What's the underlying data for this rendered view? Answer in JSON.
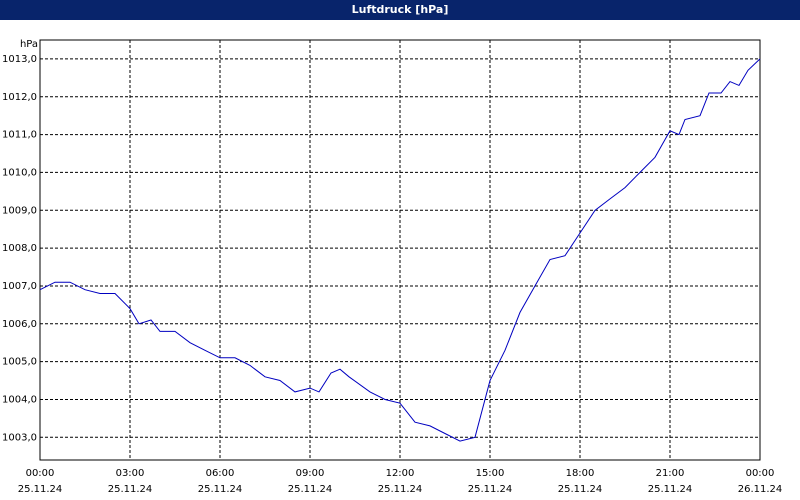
{
  "chart_data": {
    "type": "line",
    "title": "Luftdruck [hPa]",
    "y_unit": "hPa",
    "x": [
      0,
      0.5,
      1,
      1.5,
      2,
      2.5,
      3,
      3.3,
      3.7,
      4,
      4.5,
      5,
      5.5,
      6,
      6.5,
      7,
      7.5,
      8,
      8.5,
      9,
      9.3,
      9.7,
      10,
      10.3,
      11,
      11.5,
      12,
      12.5,
      13,
      13.5,
      14,
      14.5,
      15,
      15.5,
      16,
      16.5,
      17,
      17.5,
      18,
      18.5,
      19,
      19.5,
      20,
      20.5,
      21,
      21.3,
      21.5,
      22,
      22.3,
      22.7,
      23,
      23.3,
      23.6,
      24
    ],
    "series": [
      {
        "name": "Luftdruck",
        "color": "#0000c0",
        "values": [
          1006.9,
          1007.1,
          1007.1,
          1006.9,
          1006.8,
          1006.8,
          1006.4,
          1006.0,
          1006.1,
          1005.8,
          1005.8,
          1005.5,
          1005.3,
          1005.1,
          1005.1,
          1004.9,
          1004.6,
          1004.5,
          1004.2,
          1004.3,
          1004.2,
          1004.7,
          1004.8,
          1004.6,
          1004.2,
          1004.0,
          1003.9,
          1003.4,
          1003.3,
          1003.1,
          1002.9,
          1003.0,
          1004.5,
          1005.3,
          1006.3,
          1007.0,
          1007.7,
          1007.8,
          1008.4,
          1009.0,
          1009.3,
          1009.6,
          1010.0,
          1010.4,
          1011.1,
          1011.0,
          1011.4,
          1011.5,
          1012.1,
          1012.1,
          1012.4,
          1012.3,
          1012.7,
          1013.0
        ]
      }
    ],
    "xlim": [
      0,
      24
    ],
    "xticks": [
      {
        "value": 0,
        "label": "00:00"
      },
      {
        "value": 3,
        "label": "03:00"
      },
      {
        "value": 6,
        "label": "06:00"
      },
      {
        "value": 9,
        "label": "09:00"
      },
      {
        "value": 12,
        "label": "12:00"
      },
      {
        "value": 15,
        "label": "15:00"
      },
      {
        "value": 18,
        "label": "18:00"
      },
      {
        "value": 21,
        "label": "21:00"
      },
      {
        "value": 24,
        "label": "00:00"
      }
    ],
    "xtick_dates": [
      "25.11.24",
      "25.11.24",
      "25.11.24",
      "25.11.24",
      "25.11.24",
      "25.11.24",
      "25.11.24",
      "25.11.24",
      "26.11.24"
    ],
    "ylim": [
      1002.4,
      1013.5
    ],
    "yticks": [
      {
        "value": 1003,
        "label": "1003,0"
      },
      {
        "value": 1004,
        "label": "1004,0"
      },
      {
        "value": 1005,
        "label": "1005,0"
      },
      {
        "value": 1006,
        "label": "1006,0"
      },
      {
        "value": 1007,
        "label": "1007,0"
      },
      {
        "value": 1008,
        "label": "1008,0"
      },
      {
        "value": 1009,
        "label": "1009,0"
      },
      {
        "value": 1010,
        "label": "1010,0"
      },
      {
        "value": 1011,
        "label": "1011,0"
      },
      {
        "value": 1012,
        "label": "1012,0"
      },
      {
        "value": 1013,
        "label": "1013,0"
      }
    ],
    "grid": true
  }
}
